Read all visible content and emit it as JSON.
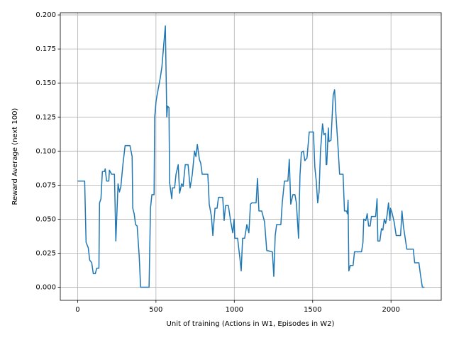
{
  "chart_data": {
    "type": "line",
    "xlabel": "Unit of training (Actions in W1, Episodes in W2)",
    "ylabel": "Reward Average (next 100)",
    "xlim": [
      -110.5,
      2320.5
    ],
    "ylim": [
      -0.0096,
      0.2016
    ],
    "xticks": [
      0,
      500,
      1000,
      1500,
      2000
    ],
    "yticks": [
      {
        "value": 0,
        "label": "0.000"
      },
      {
        "value": 0.025,
        "label": "0.025"
      },
      {
        "value": 0.05,
        "label": "0.050"
      },
      {
        "value": 0.075,
        "label": "0.075"
      },
      {
        "value": 0.1,
        "label": "0.100"
      },
      {
        "value": 0.125,
        "label": "0.125"
      },
      {
        "value": 0.15,
        "label": "0.150"
      },
      {
        "value": 0.175,
        "label": "0.175"
      },
      {
        "value": 0.2,
        "label": "0.200"
      }
    ],
    "grid": true,
    "color": "#1f77b4",
    "x": [
      0,
      45,
      54,
      68,
      77,
      90,
      100,
      113,
      122,
      136,
      140,
      149,
      158,
      172,
      176,
      185,
      199,
      203,
      217,
      235,
      244,
      258,
      267,
      276,
      289,
      303,
      334,
      348,
      352,
      361,
      370,
      380,
      393,
      402,
      456,
      465,
      474,
      488,
      492,
      501,
      515,
      528,
      538,
      551,
      560,
      569,
      574,
      583,
      587,
      601,
      605,
      619,
      628,
      642,
      651,
      664,
      673,
      687,
      705,
      718,
      732,
      746,
      755,
      764,
      777,
      786,
      795,
      831,
      840,
      854,
      863,
      877,
      890,
      899,
      926,
      935,
      944,
      962,
      976,
      990,
      999,
      1003,
      1021,
      1035,
      1044,
      1053,
      1066,
      1080,
      1093,
      1103,
      1112,
      1139,
      1148,
      1157,
      1175,
      1193,
      1207,
      1243,
      1252,
      1261,
      1270,
      1297,
      1306,
      1320,
      1342,
      1351,
      1360,
      1374,
      1387,
      1396,
      1410,
      1419,
      1428,
      1441,
      1450,
      1464,
      1478,
      1505,
      1514,
      1523,
      1532,
      1541,
      1550,
      1563,
      1572,
      1581,
      1586,
      1590,
      1600,
      1604,
      1617,
      1631,
      1640,
      1649,
      1663,
      1672,
      1694,
      1703,
      1717,
      1721,
      1726,
      1731,
      1740,
      1758,
      1767,
      1812,
      1821,
      1826,
      1839,
      1848,
      1857,
      1867,
      1875,
      1902,
      1911,
      1916,
      1929,
      1939,
      1948,
      1957,
      1966,
      1975,
      1984,
      1993,
      1997,
      2006,
      2020,
      2033,
      2061,
      2070,
      2079,
      2088,
      2101,
      2142,
      2151,
      2178,
      2187,
      2200,
      2214
    ],
    "values": [
      0.078,
      0.078,
      0.033,
      0.029,
      0.02,
      0.018,
      0.01,
      0.01,
      0.014,
      0.014,
      0.062,
      0.065,
      0.085,
      0.085,
      0.087,
      0.078,
      0.078,
      0.086,
      0.083,
      0.083,
      0.034,
      0.076,
      0.07,
      0.074,
      0.09,
      0.104,
      0.104,
      0.096,
      0.058,
      0.054,
      0.046,
      0.045,
      0.023,
      0,
      0,
      0.058,
      0.068,
      0.068,
      0.125,
      0.137,
      0.146,
      0.154,
      0.162,
      0.18,
      0.192,
      0.125,
      0.133,
      0.132,
      0.077,
      0.065,
      0.073,
      0.073,
      0.083,
      0.09,
      0.069,
      0.076,
      0.074,
      0.09,
      0.09,
      0.073,
      0.083,
      0.1,
      0.096,
      0.105,
      0.094,
      0.091,
      0.083,
      0.083,
      0.061,
      0.052,
      0.038,
      0.058,
      0.058,
      0.066,
      0.066,
      0.049,
      0.06,
      0.06,
      0.049,
      0.04,
      0.05,
      0.036,
      0.036,
      0.022,
      0.012,
      0.036,
      0.036,
      0.046,
      0.04,
      0.061,
      0.062,
      0.062,
      0.08,
      0.056,
      0.056,
      0.048,
      0.027,
      0.026,
      0.008,
      0.038,
      0.046,
      0.046,
      0.062,
      0.078,
      0.078,
      0.094,
      0.061,
      0.068,
      0.068,
      0.062,
      0.036,
      0.082,
      0.099,
      0.1,
      0.093,
      0.095,
      0.114,
      0.114,
      0.088,
      0.078,
      0.062,
      0.07,
      0.1,
      0.12,
      0.112,
      0.113,
      0.09,
      0.09,
      0.117,
      0.107,
      0.108,
      0.141,
      0.145,
      0.126,
      0.101,
      0.083,
      0.083,
      0.056,
      0.056,
      0.054,
      0.064,
      0.012,
      0.016,
      0.016,
      0.026,
      0.026,
      0.033,
      0.05,
      0.049,
      0.054,
      0.045,
      0.045,
      0.052,
      0.052,
      0.065,
      0.034,
      0.034,
      0.043,
      0.042,
      0.05,
      0.047,
      0.053,
      0.062,
      0.049,
      0.058,
      0.055,
      0.048,
      0.038,
      0.038,
      0.056,
      0.045,
      0.038,
      0.028,
      0.028,
      0.018,
      0.018,
      0.01,
      0,
      0
    ]
  }
}
